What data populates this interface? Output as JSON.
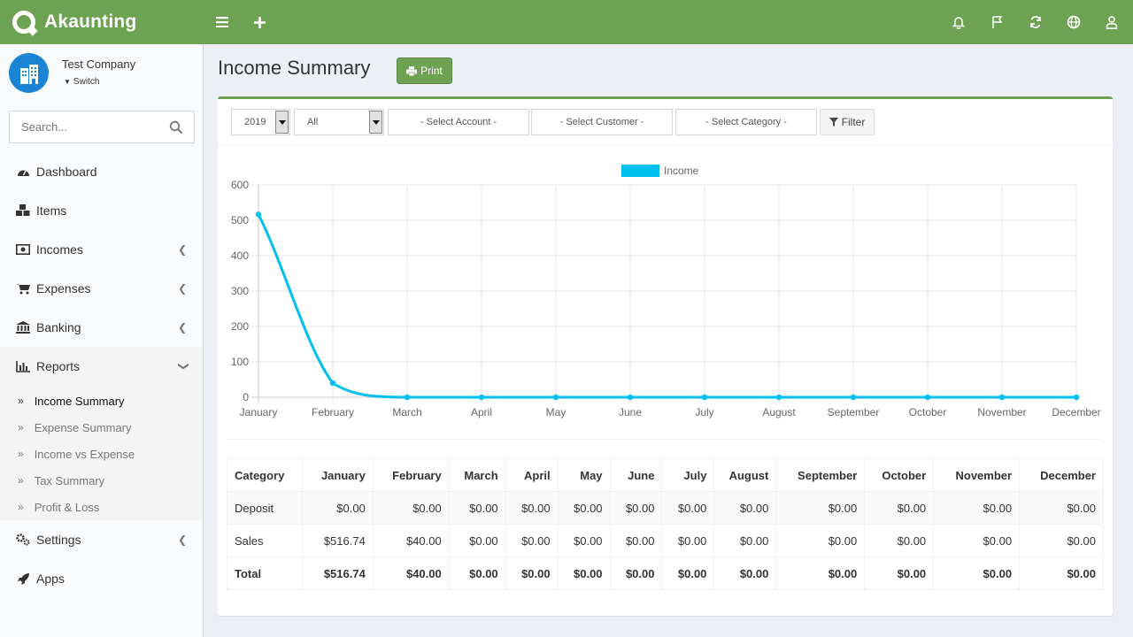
{
  "app": {
    "name": "Akaunting"
  },
  "header": {
    "icons": [
      "bars-icon",
      "plus-icon",
      "bell-icon",
      "flag-icon",
      "refresh-icon",
      "globe-icon",
      "user-icon"
    ]
  },
  "company": {
    "name": "Test Company",
    "switch_label": "Switch"
  },
  "search": {
    "placeholder": "Search..."
  },
  "sidebar": {
    "items": [
      {
        "label": "Dashboard",
        "icon": "dashboard-icon"
      },
      {
        "label": "Items",
        "icon": "cubes-icon"
      },
      {
        "label": "Incomes",
        "icon": "money-icon"
      },
      {
        "label": "Expenses",
        "icon": "cart-icon"
      },
      {
        "label": "Banking",
        "icon": "bank-icon"
      },
      {
        "label": "Reports",
        "icon": "bar-chart-icon"
      },
      {
        "label": "Settings",
        "icon": "gears-icon"
      },
      {
        "label": "Apps",
        "icon": "rocket-icon"
      }
    ],
    "reports_sub": [
      "Income Summary",
      "Expense Summary",
      "Income vs Expense",
      "Tax Summary",
      "Profit & Loss"
    ]
  },
  "page": {
    "title": "Income Summary",
    "print_label": "Print"
  },
  "filters": {
    "year": "2019",
    "status": "All",
    "account": "- Select Account -",
    "customer": "- Select Customer -",
    "category": "- Select Category -",
    "filter_label": "Filter"
  },
  "colors": {
    "brand": "#6da252",
    "series": "#00c0ef"
  },
  "chart_data": {
    "type": "line",
    "categories": [
      "January",
      "February",
      "March",
      "April",
      "May",
      "June",
      "July",
      "August",
      "September",
      "October",
      "November",
      "December"
    ],
    "series": [
      {
        "name": "Income",
        "values": [
          516.74,
          40,
          0,
          0,
          0,
          0,
          0,
          0,
          0,
          0,
          0,
          0
        ]
      }
    ],
    "ylim": [
      0,
      600
    ],
    "yticks": [
      0,
      100,
      200,
      300,
      400,
      500,
      600
    ],
    "legend": "top-center",
    "grid": true
  },
  "table": {
    "headers": [
      "Category",
      "January",
      "February",
      "March",
      "April",
      "May",
      "June",
      "July",
      "August",
      "September",
      "October",
      "November",
      "December"
    ],
    "rows": [
      [
        "Deposit",
        "$0.00",
        "$0.00",
        "$0.00",
        "$0.00",
        "$0.00",
        "$0.00",
        "$0.00",
        "$0.00",
        "$0.00",
        "$0.00",
        "$0.00",
        "$0.00"
      ],
      [
        "Sales",
        "$516.74",
        "$40.00",
        "$0.00",
        "$0.00",
        "$0.00",
        "$0.00",
        "$0.00",
        "$0.00",
        "$0.00",
        "$0.00",
        "$0.00",
        "$0.00"
      ]
    ],
    "total": [
      "Total",
      "$516.74",
      "$40.00",
      "$0.00",
      "$0.00",
      "$0.00",
      "$0.00",
      "$0.00",
      "$0.00",
      "$0.00",
      "$0.00",
      "$0.00",
      "$0.00"
    ]
  }
}
